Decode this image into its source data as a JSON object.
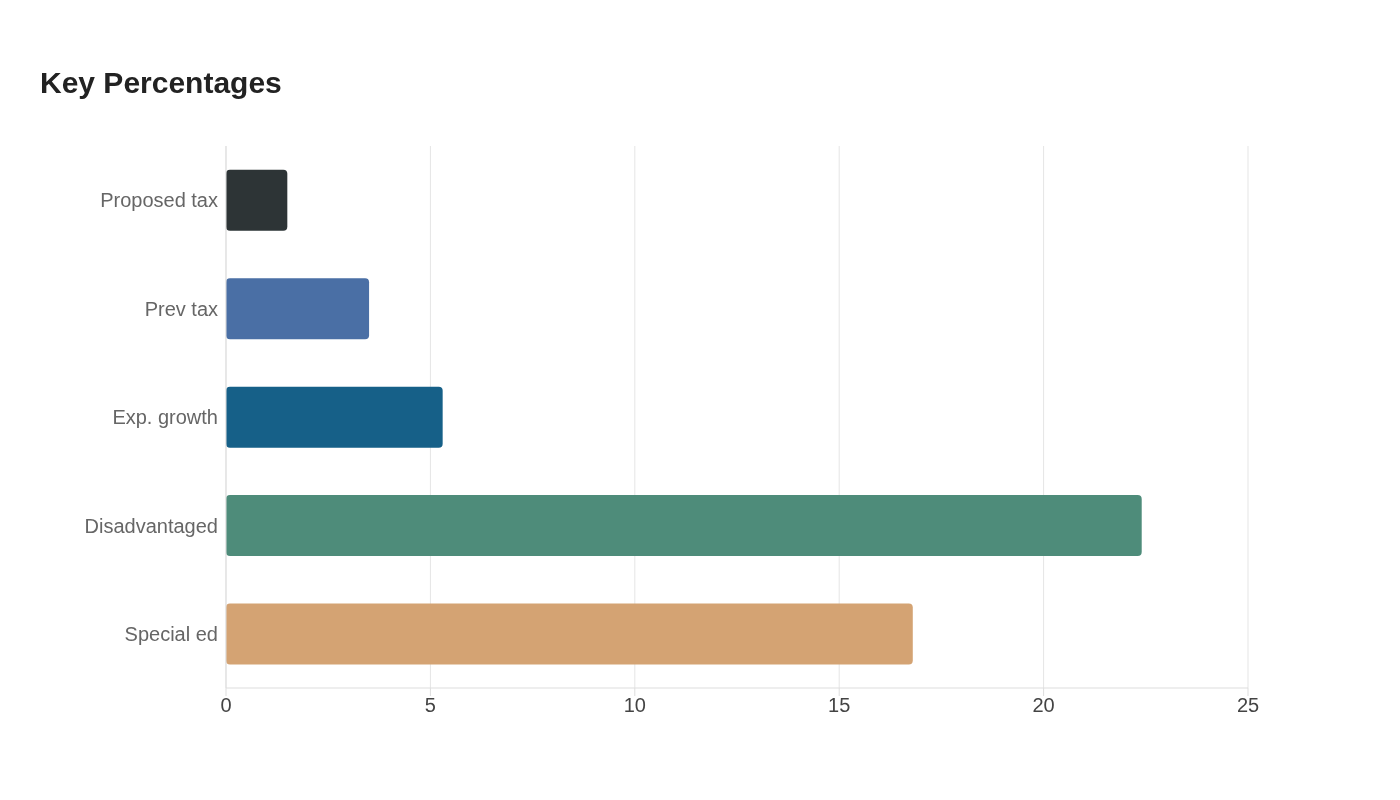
{
  "chart_data": {
    "type": "bar",
    "orientation": "horizontal",
    "title": "Key Percentages",
    "categories": [
      "Proposed tax",
      "Prev tax",
      "Exp. growth",
      "Disadvantaged",
      "Special ed"
    ],
    "values": [
      1.5,
      3.5,
      5.3,
      22.4,
      16.8
    ],
    "colors": [
      "#2d3436",
      "#4a6fa5",
      "#166088",
      "#4e8c7a",
      "#d4a373"
    ],
    "xlim": [
      0,
      25
    ],
    "xticks": [
      0,
      5,
      10,
      15,
      20,
      25
    ],
    "grid": "x"
  }
}
